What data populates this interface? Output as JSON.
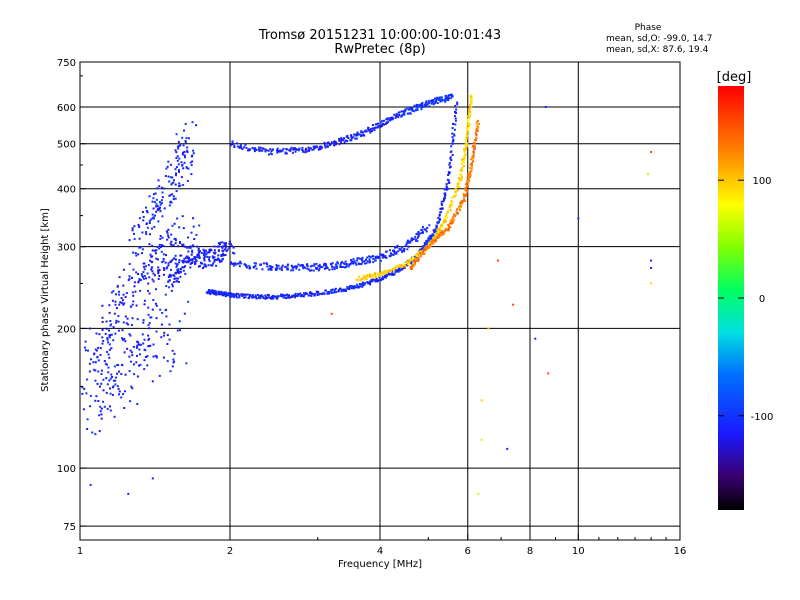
{
  "chart_data": {
    "type": "scatter",
    "title": "Tromsø 20151231 10:00:00-10:01:43",
    "subtitle": "RwPretec (8p)",
    "xlabel": "Frequency [MHz]",
    "ylabel": "Stationary phase Virtual Height [km]",
    "x_scale": "log",
    "y_scale": "log",
    "xlim": [
      1,
      16
    ],
    "ylim": [
      70,
      750
    ],
    "x_ticks": [
      1,
      2,
      4,
      6,
      8,
      10,
      16
    ],
    "x_tick_labels": [
      "1",
      "2",
      "4",
      "6",
      "8",
      "10",
      "16"
    ],
    "y_ticks": [
      75,
      100,
      200,
      300,
      400,
      500,
      600,
      750
    ],
    "y_tick_labels": [
      "75",
      "100",
      "200",
      "300",
      "400",
      "500",
      "600",
      "750"
    ],
    "grid": true,
    "stats": {
      "heading": "Phase",
      "line_o": "mean, sd,O: -99.0, 14.7",
      "line_x": "mean, sd,X:  87.6, 19.4"
    },
    "colorbar": {
      "label": "[deg]",
      "range": [
        -180,
        180
      ],
      "ticks": [
        100,
        0,
        -100
      ],
      "tick_labels": [
        "100",
        "0",
        "-100"
      ]
    },
    "traces": [
      {
        "x": [
          1.0,
          1.1,
          1.2,
          1.3,
          1.4,
          1.5
        ],
        "y": [
          130,
          150,
          165,
          180,
          190,
          200
        ],
        "phase": -110,
        "spread": 0.35
      },
      {
        "x": [
          1.05,
          1.15,
          1.25,
          1.35,
          1.45,
          1.55,
          1.65
        ],
        "y": [
          170,
          200,
          240,
          260,
          280,
          300,
          320
        ],
        "phase": -112,
        "spread": 0.2
      },
      {
        "x": [
          1.3,
          1.4,
          1.5,
          1.6,
          1.65
        ],
        "y": [
          300,
          350,
          400,
          450,
          520
        ],
        "phase": -108,
        "spread": 0.15
      },
      {
        "x": [
          1.5,
          1.6,
          1.7,
          1.8,
          1.9,
          2.0
        ],
        "y": [
          250,
          270,
          290,
          280,
          290,
          300
        ],
        "phase": -112,
        "spread": 0.08
      },
      {
        "x": [
          1.8,
          1.9,
          2.0,
          2.2,
          2.5,
          2.8,
          3.2,
          3.6,
          4.0,
          4.4,
          4.8,
          5.2,
          5.5,
          5.7
        ],
        "y": [
          240,
          238,
          236,
          234,
          234,
          236,
          240,
          246,
          256,
          268,
          290,
          330,
          420,
          620
        ],
        "phase": -108,
        "spread": 0.02
      },
      {
        "x": [
          2.0,
          2.4,
          2.8,
          3.2,
          3.6,
          4.0,
          4.5,
          5.0
        ],
        "y": [
          275,
          272,
          270,
          272,
          278,
          285,
          300,
          330
        ],
        "phase": -106,
        "spread": 0.035
      },
      {
        "x": [
          3.6,
          4.0,
          4.5,
          5.0,
          5.4,
          5.8,
          6.0,
          6.1
        ],
        "y": [
          255,
          262,
          275,
          300,
          340,
          420,
          520,
          640
        ],
        "phase": 95,
        "spread": 0.02
      },
      {
        "x": [
          4.6,
          5.0,
          5.5,
          5.9,
          6.1,
          6.3
        ],
        "y": [
          270,
          300,
          330,
          380,
          450,
          560
        ],
        "phase": 130,
        "spread": 0.02
      },
      {
        "x": [
          2.0,
          2.4,
          2.8,
          3.2,
          3.6,
          4.0,
          4.4
        ],
        "y": [
          500,
          480,
          485,
          500,
          520,
          550,
          580
        ],
        "phase": -110,
        "spread": 0.03
      },
      {
        "x": [
          4.4,
          4.8,
          5.2,
          5.6
        ],
        "y": [
          580,
          600,
          620,
          630
        ],
        "phase": -100,
        "spread": 0.03
      }
    ],
    "outliers": [
      {
        "x": 1.05,
        "y": 92,
        "phase": -110
      },
      {
        "x": 1.25,
        "y": 88,
        "phase": -110
      },
      {
        "x": 1.4,
        "y": 95,
        "phase": -110
      },
      {
        "x": 6.4,
        "y": 140,
        "phase": 100
      },
      {
        "x": 6.4,
        "y": 115,
        "phase": 90
      },
      {
        "x": 6.3,
        "y": 88,
        "phase": 60
      },
      {
        "x": 6.6,
        "y": 200,
        "phase": 110
      },
      {
        "x": 7.2,
        "y": 110,
        "phase": -110
      },
      {
        "x": 7.4,
        "y": 225,
        "phase": 150
      },
      {
        "x": 8.2,
        "y": 190,
        "phase": -110
      },
      {
        "x": 8.6,
        "y": 600,
        "phase": -110
      },
      {
        "x": 8.7,
        "y": 160,
        "phase": 150
      },
      {
        "x": 10.0,
        "y": 345,
        "phase": -110
      },
      {
        "x": 14.0,
        "y": 480,
        "phase": 150
      },
      {
        "x": 14.0,
        "y": 280,
        "phase": -110
      },
      {
        "x": 14.0,
        "y": 270,
        "phase": -110
      },
      {
        "x": 14.0,
        "y": 250,
        "phase": 95
      },
      {
        "x": 13.8,
        "y": 430,
        "phase": 60
      },
      {
        "x": 6.9,
        "y": 280,
        "phase": 150
      },
      {
        "x": 3.2,
        "y": 215,
        "phase": 150
      }
    ]
  }
}
